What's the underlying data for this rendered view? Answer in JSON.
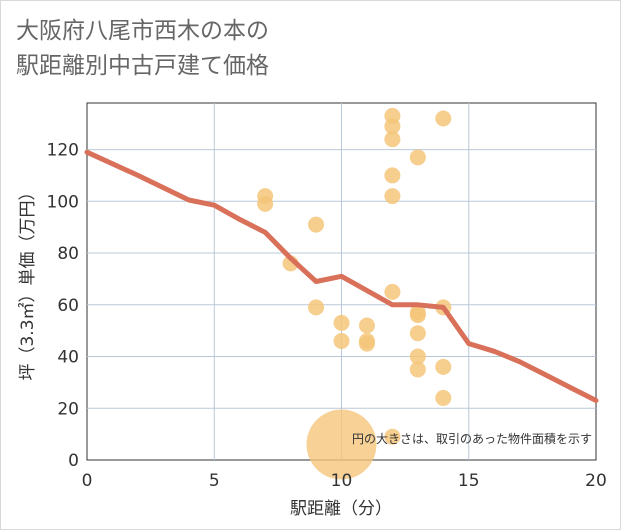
{
  "title_lines": [
    "大阪府八尾市西木の本の",
    "駅距離別中古戸建て価格"
  ],
  "chart_data": {
    "type": "scatter",
    "xlabel": "駅距離（分）",
    "ylabel": "坪（3.3㎡）単価（万円）",
    "xlim": [
      0,
      20
    ],
    "ylim": [
      0,
      138
    ],
    "xticks": [
      0,
      5,
      10,
      15,
      20
    ],
    "yticks": [
      0,
      20,
      40,
      60,
      80,
      100,
      120
    ],
    "grid": true,
    "annotation": "円の大きさは、取引のあった物件面積を示す",
    "series": [
      {
        "type": "bubble",
        "color": "#f5c57a",
        "points": [
          {
            "x": 7,
            "y": 102
          },
          {
            "x": 7,
            "y": 99
          },
          {
            "x": 8,
            "y": 76
          },
          {
            "x": 9,
            "y": 91
          },
          {
            "x": 9,
            "y": 59
          },
          {
            "x": 10,
            "y": 53
          },
          {
            "x": 10,
            "y": 46
          },
          {
            "x": 10,
            "y": 6,
            "size": "large"
          },
          {
            "x": 11,
            "y": 52
          },
          {
            "x": 11,
            "y": 46
          },
          {
            "x": 11,
            "y": 45
          },
          {
            "x": 12,
            "y": 133
          },
          {
            "x": 12,
            "y": 129
          },
          {
            "x": 12,
            "y": 124
          },
          {
            "x": 12,
            "y": 110
          },
          {
            "x": 12,
            "y": 102
          },
          {
            "x": 12,
            "y": 65
          },
          {
            "x": 12,
            "y": 9
          },
          {
            "x": 13,
            "y": 117
          },
          {
            "x": 13,
            "y": 57
          },
          {
            "x": 13,
            "y": 56
          },
          {
            "x": 13,
            "y": 49
          },
          {
            "x": 13,
            "y": 40
          },
          {
            "x": 13,
            "y": 35
          },
          {
            "x": 14,
            "y": 132
          },
          {
            "x": 14,
            "y": 59
          },
          {
            "x": 14,
            "y": 36
          },
          {
            "x": 14,
            "y": 24
          }
        ]
      },
      {
        "type": "line",
        "color": "#d9705a",
        "points": [
          {
            "x": 0,
            "y": 119
          },
          {
            "x": 2,
            "y": 110
          },
          {
            "x": 4,
            "y": 100.5
          },
          {
            "x": 5,
            "y": 98.5
          },
          {
            "x": 6,
            "y": 93
          },
          {
            "x": 7,
            "y": 88
          },
          {
            "x": 8,
            "y": 78
          },
          {
            "x": 9,
            "y": 69
          },
          {
            "x": 10,
            "y": 71
          },
          {
            "x": 11,
            "y": 65.5
          },
          {
            "x": 12,
            "y": 60
          },
          {
            "x": 13,
            "y": 60
          },
          {
            "x": 14,
            "y": 59
          },
          {
            "x": 15,
            "y": 45
          },
          {
            "x": 16,
            "y": 42
          },
          {
            "x": 17,
            "y": 38
          },
          {
            "x": 18,
            "y": 33
          },
          {
            "x": 19,
            "y": 28
          },
          {
            "x": 20,
            "y": 23
          }
        ]
      }
    ]
  }
}
